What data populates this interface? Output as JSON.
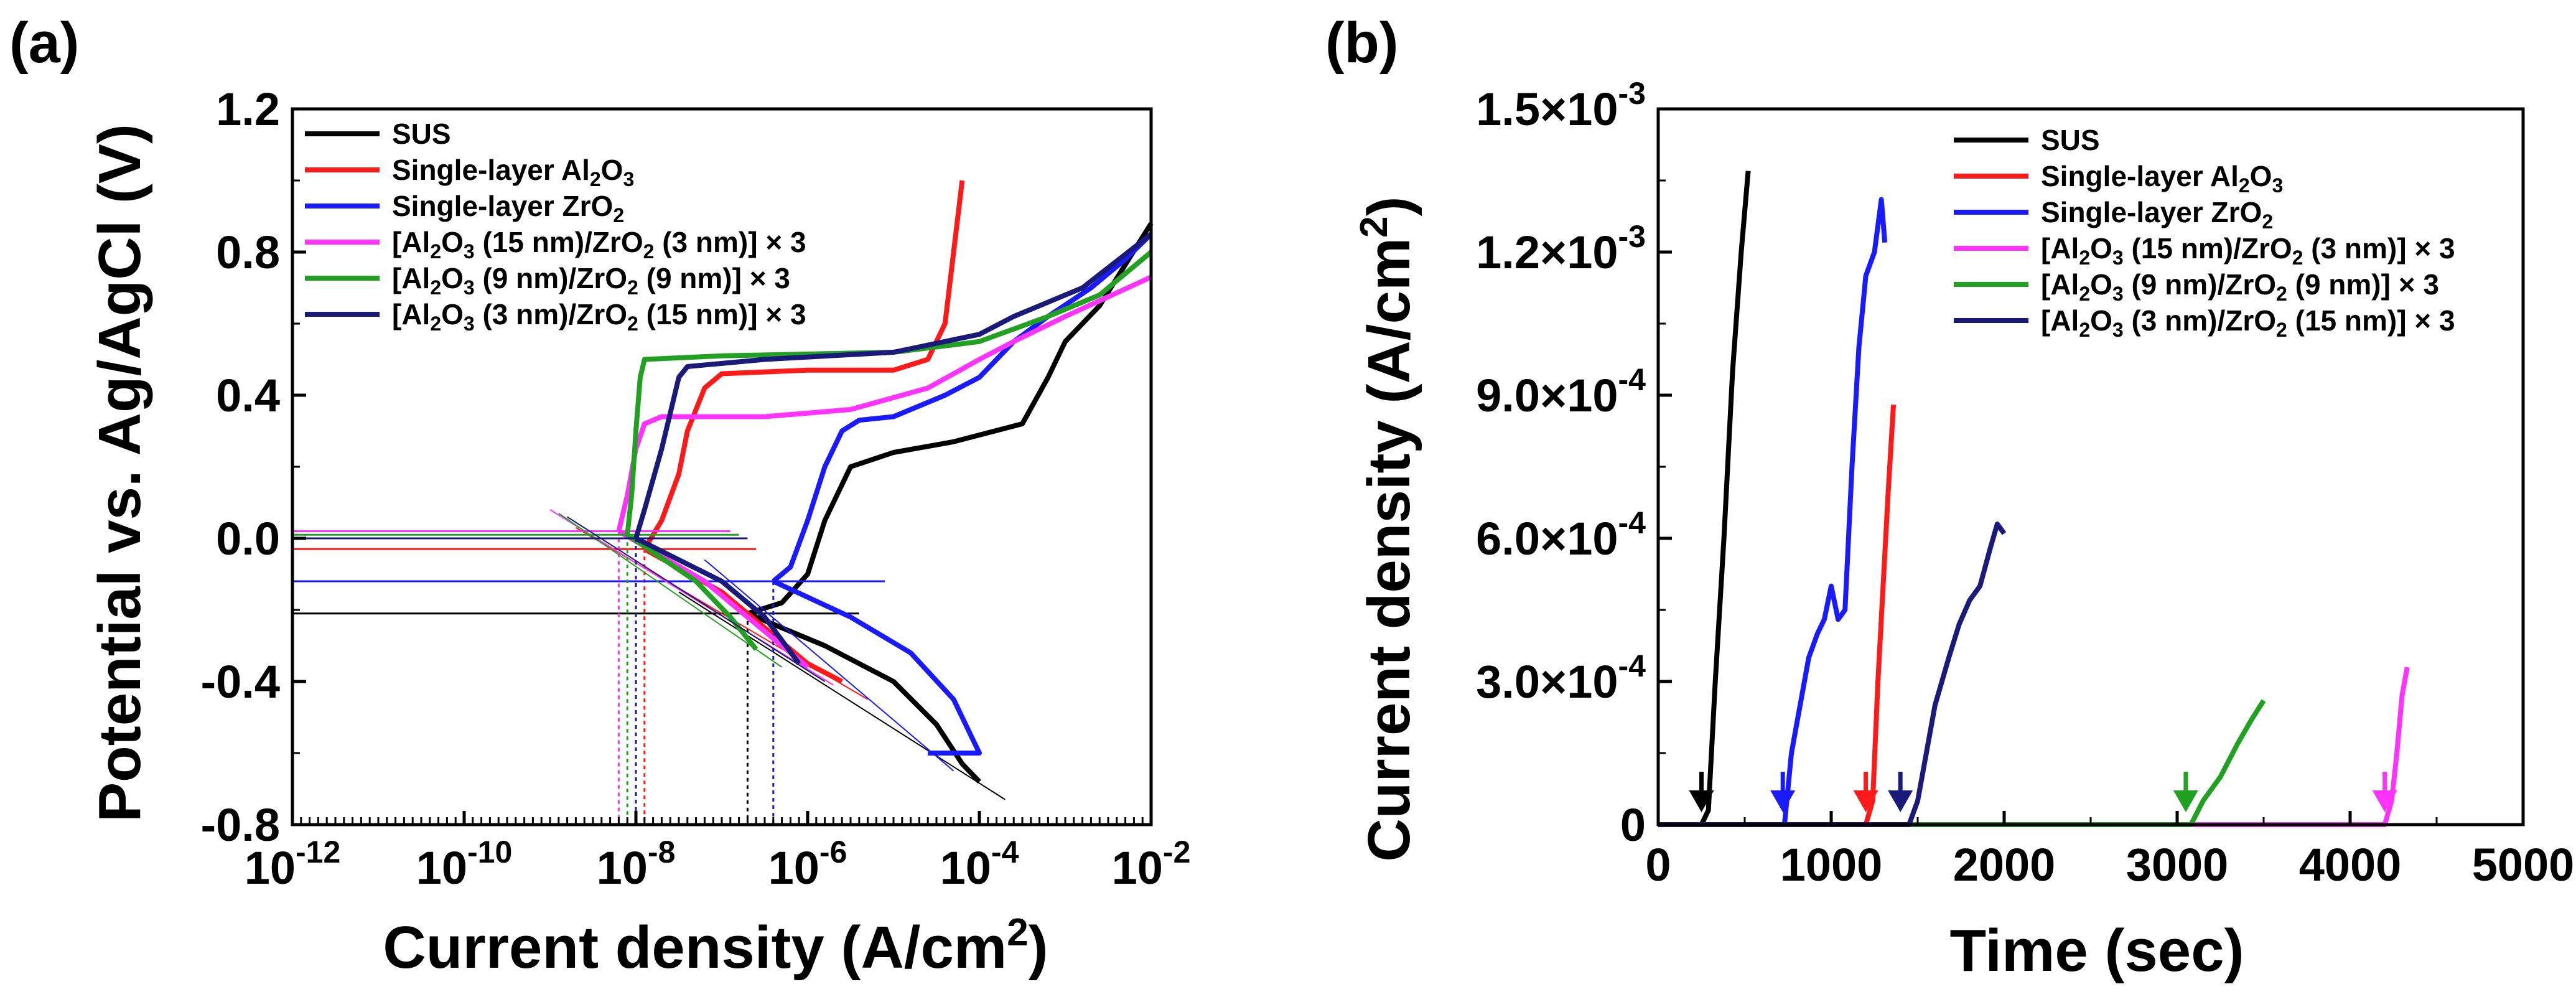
{
  "chart_data": [
    {
      "panel_label": "(a)",
      "type": "line",
      "title": "",
      "xlabel": "Current density (A/cm",
      "xlabel_sup": "2",
      "xlabel_end": ")",
      "ylabel": "Potential vs. Ag/AgCl (V)",
      "xscale": "log",
      "xlim": [
        -12,
        -2
      ],
      "ylim": [
        -0.8,
        1.2
      ],
      "x_ticks": [
        {
          "exp": -12,
          "base": "10",
          "sup": "-12"
        },
        {
          "exp": -10,
          "base": "10",
          "sup": "-10"
        },
        {
          "exp": -8,
          "base": "10",
          "sup": "-8"
        },
        {
          "exp": -6,
          "base": "10",
          "sup": "-6"
        },
        {
          "exp": -4,
          "base": "10",
          "sup": "-4"
        },
        {
          "exp": -2,
          "base": "10",
          "sup": "-2"
        }
      ],
      "y_ticks": [
        {
          "v": -0.8,
          "label": "-0.8"
        },
        {
          "v": -0.4,
          "label": "-0.4"
        },
        {
          "v": 0.0,
          "label": "0.0"
        },
        {
          "v": 0.4,
          "label": "0.4"
        },
        {
          "v": 0.8,
          "label": "0.8"
        },
        {
          "v": 1.2,
          "label": "1.2"
        }
      ],
      "legend_position": "top-left",
      "series": [
        {
          "name": "SUS",
          "color": "#000000",
          "ecorr": -0.21,
          "logicorr": -6.7,
          "anodic": [
            [
              -6.7,
              -0.21
            ],
            [
              -6.3,
              -0.18
            ],
            [
              -6.0,
              -0.1
            ],
            [
              -5.8,
              0.05
            ],
            [
              -5.5,
              0.2
            ],
            [
              -5.0,
              0.24
            ],
            [
              -4.3,
              0.27
            ],
            [
              -3.5,
              0.32
            ],
            [
              -3.2,
              0.45
            ],
            [
              -3.0,
              0.55
            ],
            [
              -2.6,
              0.65
            ],
            [
              -2.0,
              0.88
            ]
          ],
          "cathodic": [
            [
              -6.7,
              -0.21
            ],
            [
              -5.8,
              -0.3
            ],
            [
              -5.0,
              -0.4
            ],
            [
              -4.5,
              -0.52
            ],
            [
              -4.2,
              -0.63
            ],
            [
              -4.0,
              -0.68
            ]
          ]
        },
        {
          "name": "Single-layer Al2O3",
          "color": "#ff1a1a",
          "ecorr": -0.03,
          "logicorr": -7.9,
          "anodic": [
            [
              -7.9,
              -0.03
            ],
            [
              -7.7,
              0.05
            ],
            [
              -7.5,
              0.18
            ],
            [
              -7.4,
              0.3
            ],
            [
              -7.2,
              0.42
            ],
            [
              -7.0,
              0.46
            ],
            [
              -6.0,
              0.47
            ],
            [
              -5.0,
              0.47
            ],
            [
              -4.6,
              0.5
            ],
            [
              -4.4,
              0.6
            ],
            [
              -4.3,
              0.8
            ],
            [
              -4.2,
              1.0
            ]
          ],
          "cathodic": [
            [
              -7.9,
              -0.03
            ],
            [
              -7.0,
              -0.15
            ],
            [
              -6.5,
              -0.25
            ],
            [
              -6.0,
              -0.35
            ],
            [
              -5.6,
              -0.4
            ]
          ]
        },
        {
          "name": "Single-layer ZrO2",
          "color": "#1a1aff",
          "ecorr": -0.12,
          "logicorr": -6.4,
          "anodic": [
            [
              -6.4,
              -0.12
            ],
            [
              -6.2,
              -0.08
            ],
            [
              -6.0,
              0.05
            ],
            [
              -5.8,
              0.2
            ],
            [
              -5.6,
              0.3
            ],
            [
              -5.4,
              0.33
            ],
            [
              -5.0,
              0.34
            ],
            [
              -4.4,
              0.4
            ],
            [
              -4.0,
              0.45
            ],
            [
              -3.6,
              0.55
            ],
            [
              -3.2,
              0.62
            ],
            [
              -2.7,
              0.7
            ],
            [
              -2.3,
              0.78
            ],
            [
              -2.0,
              0.85
            ]
          ],
          "cathodic": [
            [
              -6.4,
              -0.12
            ],
            [
              -5.5,
              -0.22
            ],
            [
              -4.8,
              -0.32
            ],
            [
              -4.3,
              -0.45
            ],
            [
              -4.1,
              -0.55
            ],
            [
              -4.0,
              -0.6
            ],
            [
              -4.6,
              -0.6
            ]
          ]
        },
        {
          "name": "[Al2O3 (15 nm)/ZrO2 (3 nm)] × 3",
          "color": "#ff33ff",
          "ecorr": 0.02,
          "logicorr": -8.2,
          "anodic": [
            [
              -8.2,
              0.02
            ],
            [
              -8.1,
              0.12
            ],
            [
              -8.0,
              0.25
            ],
            [
              -7.9,
              0.32
            ],
            [
              -7.7,
              0.34
            ],
            [
              -6.5,
              0.34
            ],
            [
              -5.5,
              0.36
            ],
            [
              -4.6,
              0.42
            ],
            [
              -4.0,
              0.5
            ],
            [
              -3.6,
              0.55
            ],
            [
              -3.0,
              0.62
            ],
            [
              -2.0,
              0.73
            ]
          ],
          "cathodic": [
            [
              -8.2,
              0.02
            ],
            [
              -7.2,
              -0.12
            ],
            [
              -6.7,
              -0.22
            ],
            [
              -6.3,
              -0.3
            ],
            [
              -6.0,
              -0.36
            ]
          ]
        },
        {
          "name": "[Al2O3 (9 nm)/ZrO2 (9 nm)] × 3",
          "color": "#22a022",
          "ecorr": 0.01,
          "logicorr": -8.1,
          "anodic": [
            [
              -8.1,
              0.01
            ],
            [
              -8.05,
              0.12
            ],
            [
              -8.0,
              0.3
            ],
            [
              -7.95,
              0.45
            ],
            [
              -7.9,
              0.5
            ],
            [
              -7.0,
              0.51
            ],
            [
              -5.0,
              0.52
            ],
            [
              -4.0,
              0.55
            ],
            [
              -3.2,
              0.62
            ],
            [
              -2.6,
              0.68
            ],
            [
              -2.0,
              0.8
            ]
          ],
          "cathodic": [
            [
              -8.1,
              0.01
            ],
            [
              -7.3,
              -0.12
            ],
            [
              -6.9,
              -0.22
            ],
            [
              -6.6,
              -0.31
            ]
          ]
        },
        {
          "name": "[Al2O3 (3 nm)/ZrO2 (15 nm)] × 3",
          "color": "#1a1a7a",
          "ecorr": 0.0,
          "logicorr": -8.0,
          "anodic": [
            [
              -8.0,
              0.0
            ],
            [
              -7.9,
              0.08
            ],
            [
              -7.7,
              0.25
            ],
            [
              -7.5,
              0.45
            ],
            [
              -7.4,
              0.48
            ],
            [
              -6.5,
              0.5
            ],
            [
              -5.0,
              0.52
            ],
            [
              -4.0,
              0.57
            ],
            [
              -3.6,
              0.62
            ],
            [
              -2.8,
              0.7
            ],
            [
              -2.0,
              0.85
            ]
          ],
          "cathodic": [
            [
              -8.0,
              0.0
            ],
            [
              -7.0,
              -0.12
            ],
            [
              -6.5,
              -0.22
            ],
            [
              -6.1,
              -0.35
            ]
          ]
        }
      ]
    },
    {
      "panel_label": "(b)",
      "type": "line",
      "title": "",
      "xlabel": "Time (sec)",
      "ylabel": "Current density (A/cm",
      "ylabel_sup": "2",
      "ylabel_end": ")",
      "xlim": [
        0,
        5000
      ],
      "ylim": [
        0,
        0.0015
      ],
      "x_ticks": [
        {
          "v": 0,
          "label": "0"
        },
        {
          "v": 1000,
          "label": "1000"
        },
        {
          "v": 2000,
          "label": "2000"
        },
        {
          "v": 3000,
          "label": "3000"
        },
        {
          "v": 4000,
          "label": "4000"
        },
        {
          "v": 5000,
          "label": "5000"
        }
      ],
      "y_ticks": [
        {
          "v": 0,
          "mant": "0",
          "sup": ""
        },
        {
          "v": 0.0003,
          "mant": "3.0×10",
          "sup": "-4"
        },
        {
          "v": 0.0006,
          "mant": "6.0×10",
          "sup": "-4"
        },
        {
          "v": 0.0009,
          "mant": "9.0×10",
          "sup": "-4"
        },
        {
          "v": 0.0012,
          "mant": "1.2×10",
          "sup": "-3"
        },
        {
          "v": 0.0015,
          "mant": "1.5×10",
          "sup": "-3"
        }
      ],
      "legend_position": "top-right",
      "series": [
        {
          "name": "SUS",
          "color": "#000000",
          "onset": 250,
          "points": [
            [
              0,
              0
            ],
            [
              250,
              0
            ],
            [
              290,
              3e-05
            ],
            [
              330,
              0.0003
            ],
            [
              380,
              0.0006
            ],
            [
              430,
              0.00095
            ],
            [
              480,
              0.0012
            ],
            [
              520,
              0.00137
            ]
          ]
        },
        {
          "name": "Single-layer Al2O3",
          "color": "#ff1a1a",
          "onset": 1200,
          "points": [
            [
              0,
              0
            ],
            [
              1200,
              0
            ],
            [
              1240,
              5e-05
            ],
            [
              1270,
              0.0003
            ],
            [
              1300,
              0.0005
            ],
            [
              1330,
              0.0007
            ],
            [
              1360,
              0.00088
            ]
          ]
        },
        {
          "name": "Single-layer ZrO2",
          "color": "#1a1aff",
          "onset": 720,
          "points": [
            [
              0,
              0
            ],
            [
              730,
              0
            ],
            [
              770,
              0.00015
            ],
            [
              820,
              0.00025
            ],
            [
              870,
              0.00035
            ],
            [
              920,
              0.0004
            ],
            [
              960,
              0.00043
            ],
            [
              1000,
              0.0005
            ],
            [
              1040,
              0.00043
            ],
            [
              1080,
              0.00045
            ],
            [
              1120,
              0.00075
            ],
            [
              1160,
              0.001
            ],
            [
              1200,
              0.00115
            ],
            [
              1250,
              0.0012
            ],
            [
              1290,
              0.00131
            ],
            [
              1310,
              0.00122
            ]
          ]
        },
        {
          "name": "[Al2O3 (15 nm)/ZrO2 (3 nm)] × 3",
          "color": "#ff33ff",
          "onset": 4200,
          "points": [
            [
              0,
              0
            ],
            [
              4200,
              0
            ],
            [
              4240,
              5e-05
            ],
            [
              4270,
              0.00015
            ],
            [
              4300,
              0.00027
            ],
            [
              4330,
              0.00033
            ]
          ]
        },
        {
          "name": "[Al2O3 (9 nm)/ZrO2 (9 nm)] × 3",
          "color": "#22a022",
          "onset": 3050,
          "points": [
            [
              0,
              0
            ],
            [
              3080,
              0
            ],
            [
              3150,
              5e-05
            ],
            [
              3250,
              0.0001
            ],
            [
              3350,
              0.00017
            ],
            [
              3430,
              0.00022
            ],
            [
              3500,
              0.00026
            ]
          ]
        },
        {
          "name": "[Al2O3 (3 nm)/ZrO2 (15 nm)] × 3",
          "color": "#1a1a7a",
          "onset": 1400,
          "points": [
            [
              0,
              0
            ],
            [
              1450,
              0
            ],
            [
              1500,
              5e-05
            ],
            [
              1550,
              0.00015
            ],
            [
              1600,
              0.00025
            ],
            [
              1680,
              0.00035
            ],
            [
              1740,
              0.00042
            ],
            [
              1800,
              0.00047
            ],
            [
              1860,
              0.0005
            ],
            [
              1920,
              0.00058
            ],
            [
              1960,
              0.00063
            ],
            [
              2000,
              0.00061
            ]
          ]
        }
      ]
    }
  ]
}
